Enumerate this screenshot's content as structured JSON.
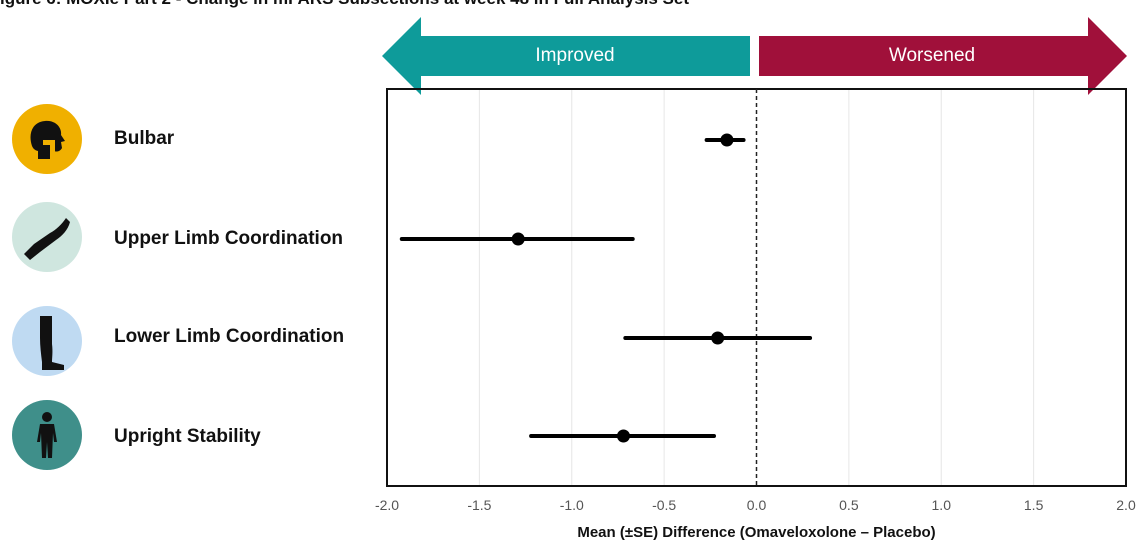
{
  "figure_title": "igure 6: MOXIe Part 2 - Change in mFARS Subsections at week 48 in Full Analysis Set",
  "colors": {
    "improved": "#0e9b9a",
    "worsened": "#a0103a",
    "bulbar_icon_bg": "#f0b000",
    "upper_icon_bg": "#cfe6df",
    "lower_icon_bg": "#bfdaf2",
    "stability_icon_bg": "#3f8f8a"
  },
  "arrows": {
    "improved": "Improved",
    "worsened": "Worsened"
  },
  "icons": [
    "head-profile-icon",
    "arm-icon",
    "leg-icon",
    "person-icon"
  ],
  "chart_data": {
    "type": "forest",
    "xlabel": "Mean (±SE) Difference (Omaveloxolone – Placebo)",
    "xlim": [
      -2.0,
      2.0
    ],
    "xticks": [
      "-2.0",
      "-1.5",
      "-1.0",
      "-0.5",
      "0.0",
      "0.5",
      "1.0",
      "1.5",
      "2.0"
    ],
    "reference_line": 0,
    "grid": "vertical",
    "rows": [
      {
        "label": "Bulbar",
        "mean": -0.16,
        "lower": -0.27,
        "upper": -0.07
      },
      {
        "label": "Upper Limb Coordination",
        "mean": -1.29,
        "lower": -1.92,
        "upper": -0.67
      },
      {
        "label": "Lower Limb Coordination",
        "mean": -0.21,
        "lower": -0.71,
        "upper": 0.29
      },
      {
        "label": "Upright Stability",
        "mean": -0.72,
        "lower": -1.22,
        "upper": -0.23
      }
    ]
  }
}
